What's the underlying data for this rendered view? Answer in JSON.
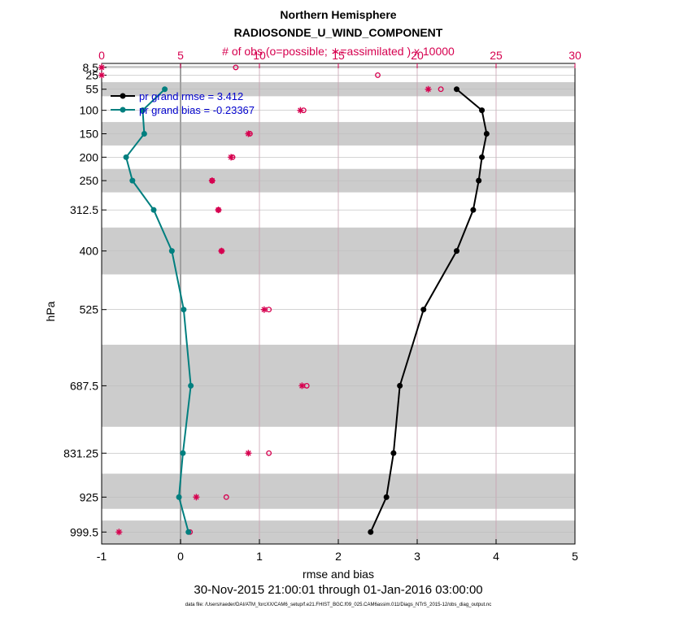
{
  "chart_data": {
    "type": "line",
    "title": "Northern Hemisphere",
    "subtitle": "RADIOSONDE_U_WIND_COMPONENT",
    "top_axis_label": "# of obs (o=possible; ∗=assimilated ) x 10000",
    "xlabel": "rmse and bias",
    "ylabel": "hPa",
    "date_range": "30-Nov-2015 21:00:01 through 01-Jan-2016 03:00:00",
    "footer": "data file: /Users/raeder/DAI/ATM_forcXX/CAM6_setup/f.e21.FHIST_BGC.f09_025.CAM6assim.011/Diags_NTrS_2015-12/obs_diag_output.nc",
    "xlim": [
      -1,
      5
    ],
    "x_ticks": [
      "-1",
      "0",
      "1",
      "2",
      "3",
      "4",
      "5"
    ],
    "x_tick_values": [
      -1,
      0,
      1,
      2,
      3,
      4,
      5
    ],
    "top_xlim": [
      0,
      30
    ],
    "top_ticks": [
      "0",
      "5",
      "10",
      "15",
      "20",
      "25",
      "30"
    ],
    "top_tick_values": [
      0,
      5,
      10,
      15,
      20,
      25,
      30
    ],
    "ylim": [
      1025,
      0
    ],
    "levels": [
      8.5,
      25,
      55,
      100,
      150,
      200,
      250,
      312.5,
      400,
      525,
      687.5,
      831.25,
      925,
      999.5
    ],
    "level_labels": [
      "8.5",
      "25",
      "55",
      "100",
      "150",
      "200",
      "250",
      "312.5",
      "400",
      "525",
      "687.5",
      "831.25",
      "925",
      "999.5"
    ],
    "bands": [
      [
        5,
        10
      ],
      [
        40,
        70
      ],
      [
        125,
        175
      ],
      [
        225,
        275
      ],
      [
        350,
        450
      ],
      [
        600,
        775
      ],
      [
        875,
        950
      ],
      [
        975,
        1025
      ]
    ],
    "series": [
      {
        "name": "pr grand rmse",
        "legend": "pr grand rmse = 3.412",
        "color": "#000000",
        "levels": [
          55,
          100,
          150,
          200,
          250,
          312.5,
          400,
          525,
          687.5,
          831.25,
          925,
          999.5
        ],
        "values": [
          3.5,
          3.82,
          3.88,
          3.82,
          3.78,
          3.71,
          3.5,
          3.08,
          2.78,
          2.7,
          2.61,
          2.41
        ]
      },
      {
        "name": "pr grand bias",
        "legend": "pr grand bias = -0.23367",
        "color": "#007f7f",
        "levels": [
          55,
          100,
          150,
          200,
          250,
          312.5,
          400,
          525,
          687.5,
          831.25,
          925,
          999.5
        ],
        "values": [
          -0.2,
          -0.48,
          -0.46,
          -0.69,
          -0.61,
          -0.34,
          -0.11,
          0.04,
          0.13,
          0.03,
          -0.02,
          0.1
        ]
      }
    ],
    "obs_possible": {
      "marker": "o",
      "color": "#d6004f",
      "levels": [
        8.5,
        25,
        55,
        100,
        150,
        200,
        250,
        312.5,
        400,
        525,
        687.5,
        831.25,
        925,
        999.5
      ],
      "values": [
        8.5,
        17.5,
        21.5,
        12.8,
        9.4,
        8.3,
        7.0,
        7.4,
        7.6,
        10.6,
        13.0,
        10.6,
        7.9,
        5.6
      ]
    },
    "obs_assimilated": {
      "marker": "*",
      "color": "#d6004f",
      "levels": [
        8.5,
        25,
        55,
        100,
        150,
        200,
        250,
        312.5,
        400,
        525,
        687.5,
        831.25,
        925,
        999.5
      ],
      "values": [
        0,
        0,
        20.7,
        12.6,
        9.3,
        8.2,
        7.0,
        7.4,
        7.6,
        10.3,
        12.7,
        9.3,
        6.0,
        1.1
      ]
    }
  }
}
